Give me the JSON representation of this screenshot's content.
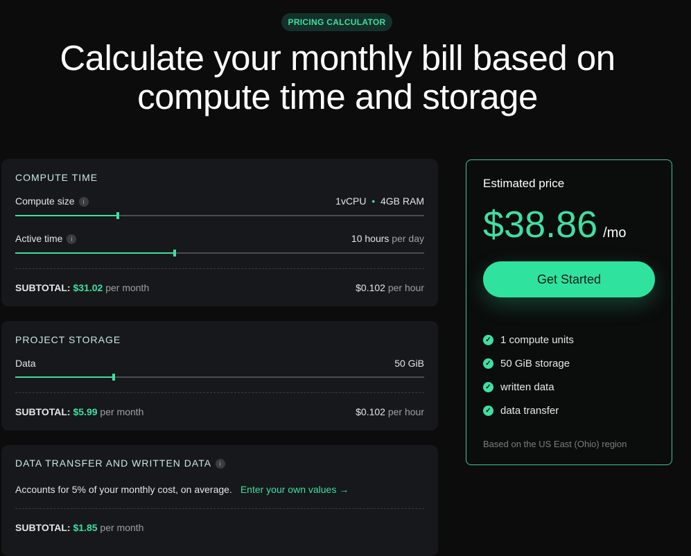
{
  "badge": "PRICING CALCULATOR",
  "headline_1": "Calculate your monthly bill based on",
  "headline_2": "compute time and storage",
  "compute": {
    "title": "COMPUTE TIME",
    "size_label": "Compute size",
    "size_cpu": "1vCPU",
    "size_ram": "4GB RAM",
    "size_slider": 25,
    "active_label": "Active time",
    "active_value": "10 hours",
    "active_unit": "per day",
    "active_slider": 39,
    "subtotal_label": "SUBTOTAL:",
    "subtotal": "$31.02",
    "subtotal_unit": "per month",
    "rate": "$0.102",
    "rate_unit": "per hour"
  },
  "storage": {
    "title": "PROJECT STORAGE",
    "data_label": "Data",
    "data_value": "50 GiB",
    "data_slider": 24,
    "subtotal_label": "SUBTOTAL:",
    "subtotal": "$5.99",
    "subtotal_unit": "per month",
    "rate": "$0.102",
    "rate_unit": "per hour"
  },
  "transfer": {
    "title": "DATA TRANSFER AND WRITTEN DATA",
    "desc": "Accounts for 5% of your monthly cost, on average.",
    "link": "Enter your own values →",
    "subtotal_label": "SUBTOTAL:",
    "subtotal": "$1.85",
    "subtotal_unit": "per month"
  },
  "estimate": {
    "title": "Estimated price",
    "price": "$38.86",
    "per": "/mo",
    "cta": "Get Started",
    "features": [
      "1 compute units",
      "50 GiB storage",
      "written data",
      "data transfer"
    ],
    "note": "Based on the US East (Ohio) region"
  },
  "colors": {
    "accent": "#3ee0a0",
    "background": "#0c0c0c",
    "card": "#16181b"
  }
}
